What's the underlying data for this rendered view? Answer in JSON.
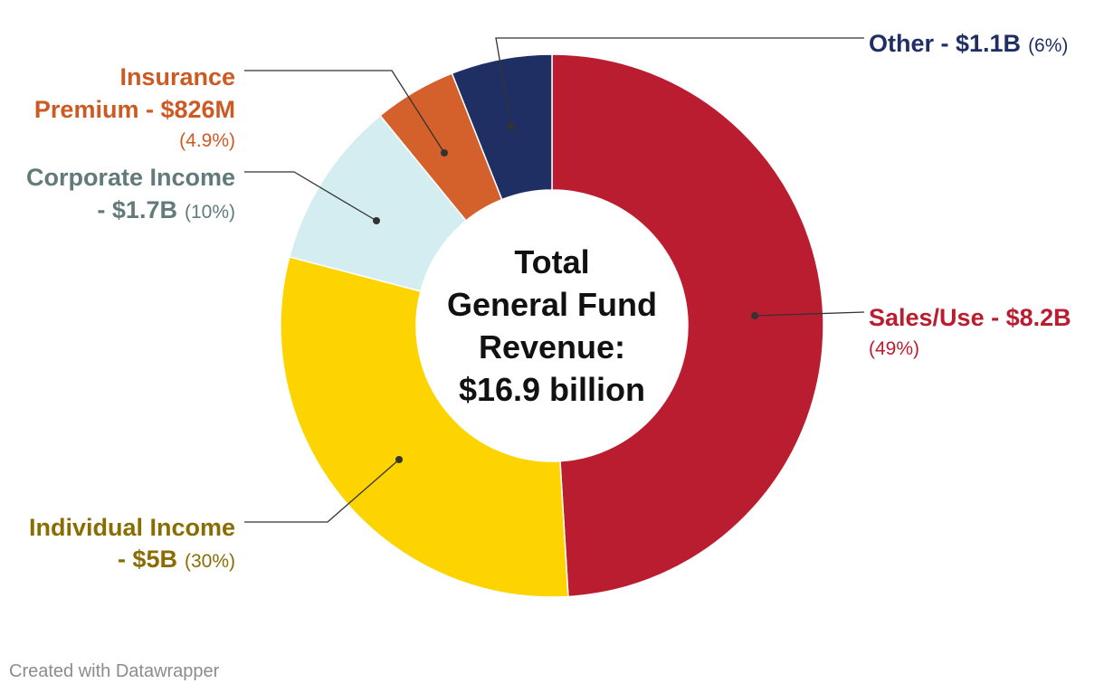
{
  "chart_data": {
    "type": "pie",
    "variant": "donut",
    "total_label": [
      "Total",
      "General Fund",
      "Revenue:",
      "$16.9 billion"
    ],
    "slices": [
      {
        "key": "sales-use",
        "name": "Sales/Use",
        "label_lines": [
          "Sales/Use - $8.2B"
        ],
        "pct_text": "(49%)",
        "value": 8.2,
        "percent": 49,
        "color": "#bb1d30",
        "label_color": "#bb1d30"
      },
      {
        "key": "individual-income",
        "name": "Individual Income",
        "label_lines": [
          "Individual Income",
          "- $5B"
        ],
        "pct_text": "(30%)",
        "value": 5.0,
        "percent": 30,
        "color": "#fdd300",
        "label_color": "#8a6d00"
      },
      {
        "key": "corporate-income",
        "name": "Corporate Income",
        "label_lines": [
          "Corporate Income",
          "- $1.7B"
        ],
        "pct_text": "(10%)",
        "value": 1.7,
        "percent": 10,
        "color": "#d4edf1",
        "label_color": "#627a7a"
      },
      {
        "key": "insurance-premium",
        "name": "Insurance Premium",
        "label_lines": [
          "Insurance",
          "Premium - $826M"
        ],
        "pct_text": "(4.9%)",
        "value": 0.826,
        "percent": 4.9,
        "color": "#d4602b",
        "label_color": "#cc5a22"
      },
      {
        "key": "other",
        "name": "Other",
        "label_lines": [
          "Other - $1.1B"
        ],
        "pct_text": "(6%)",
        "value": 1.1,
        "percent": 6,
        "color": "#1f2f63",
        "label_color": "#1f2f63"
      }
    ]
  },
  "credit": "Created with Datawrapper"
}
